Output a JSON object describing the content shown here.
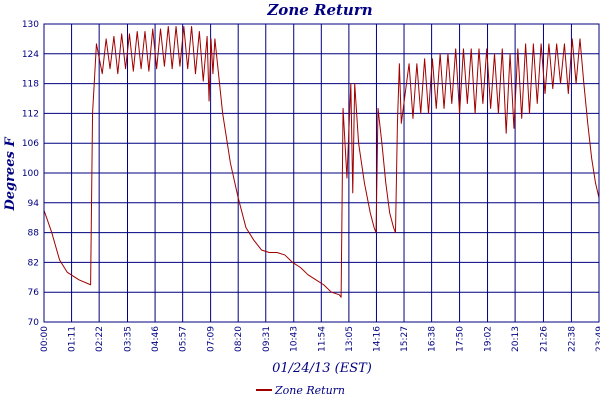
{
  "chart_data": {
    "type": "line",
    "title": "Zone Return",
    "xlabel": "01/24/13 (EST)",
    "ylabel": "Degrees F",
    "ylim": [
      70,
      130
    ],
    "y_ticks": [
      "70",
      "76",
      "82",
      "88",
      "94",
      "100",
      "106",
      "112",
      "118",
      "124",
      "130"
    ],
    "x_ticks": [
      "00:00",
      "01:11",
      "02:22",
      "03:35",
      "04:46",
      "05:57",
      "07:09",
      "08:20",
      "09:31",
      "10:43",
      "11:54",
      "13:05",
      "14:16",
      "15:27",
      "16:38",
      "17:50",
      "19:02",
      "20:13",
      "21:26",
      "22:38",
      "23:49"
    ],
    "grid": true,
    "legend_position": "bottom",
    "colors": {
      "series": "#a00000",
      "axis": "#000080",
      "grid": "#000080"
    },
    "series": [
      {
        "name": "Zone Return",
        "points": [
          [
            "00:00",
            92.5
          ],
          [
            "00:20",
            88
          ],
          [
            "00:40",
            82.5
          ],
          [
            "01:00",
            80
          ],
          [
            "01:30",
            78.5
          ],
          [
            "02:00",
            77.5
          ],
          [
            "02:05",
            112
          ],
          [
            "02:15",
            126
          ],
          [
            "02:30",
            120
          ],
          [
            "02:40",
            127
          ],
          [
            "02:50",
            121
          ],
          [
            "03:00",
            127.5
          ],
          [
            "03:10",
            120
          ],
          [
            "03:20",
            128
          ],
          [
            "03:30",
            121
          ],
          [
            "03:40",
            128
          ],
          [
            "03:50",
            120.5
          ],
          [
            "04:00",
            128.5
          ],
          [
            "04:10",
            121
          ],
          [
            "04:20",
            128.5
          ],
          [
            "04:30",
            120.5
          ],
          [
            "04:40",
            129
          ],
          [
            "04:50",
            121
          ],
          [
            "05:00",
            129
          ],
          [
            "05:10",
            121.5
          ],
          [
            "05:20",
            129.5
          ],
          [
            "05:30",
            121
          ],
          [
            "05:40",
            129.5
          ],
          [
            "05:50",
            121.5
          ],
          [
            "06:00",
            129.5
          ],
          [
            "06:10",
            121
          ],
          [
            "06:20",
            129.5
          ],
          [
            "06:30",
            120
          ],
          [
            "06:40",
            128.5
          ],
          [
            "06:50",
            118.5
          ],
          [
            "07:00",
            127.5
          ],
          [
            "07:05",
            114.5
          ],
          [
            "07:10",
            127
          ],
          [
            "07:15",
            120
          ],
          [
            "07:20",
            127
          ],
          [
            "07:40",
            112
          ],
          [
            "08:00",
            102
          ],
          [
            "08:20",
            95
          ],
          [
            "08:40",
            89
          ],
          [
            "09:00",
            86.5
          ],
          [
            "09:20",
            84.5
          ],
          [
            "09:40",
            84
          ],
          [
            "10:00",
            84
          ],
          [
            "10:20",
            83.5
          ],
          [
            "10:40",
            82
          ],
          [
            "11:00",
            81
          ],
          [
            "11:20",
            79.5
          ],
          [
            "11:40",
            78.5
          ],
          [
            "12:00",
            77.5
          ],
          [
            "12:20",
            76
          ],
          [
            "12:40",
            75.5
          ],
          [
            "12:45",
            75
          ],
          [
            "12:50",
            113
          ],
          [
            "13:00",
            99
          ],
          [
            "13:10",
            118
          ],
          [
            "13:15",
            96
          ],
          [
            "13:20",
            118
          ],
          [
            "13:30",
            106
          ],
          [
            "13:45",
            98
          ],
          [
            "14:00",
            92
          ],
          [
            "14:10",
            89
          ],
          [
            "14:15",
            88
          ],
          [
            "14:20",
            113
          ],
          [
            "14:30",
            106
          ],
          [
            "14:40",
            98
          ],
          [
            "14:50",
            92
          ],
          [
            "15:00",
            89
          ],
          [
            "15:05",
            88
          ],
          [
            "15:10",
            110
          ],
          [
            "15:15",
            122
          ],
          [
            "15:20",
            110
          ],
          [
            "15:40",
            122
          ],
          [
            "15:50",
            111
          ],
          [
            "16:00",
            122
          ],
          [
            "16:10",
            112
          ],
          [
            "16:20",
            123
          ],
          [
            "16:30",
            112
          ],
          [
            "16:40",
            123
          ],
          [
            "16:50",
            113
          ],
          [
            "17:00",
            124
          ],
          [
            "17:10",
            113
          ],
          [
            "17:20",
            124
          ],
          [
            "17:30",
            114
          ],
          [
            "17:40",
            125
          ],
          [
            "17:50",
            112
          ],
          [
            "18:00",
            125
          ],
          [
            "18:10",
            114
          ],
          [
            "18:20",
            125
          ],
          [
            "18:30",
            112
          ],
          [
            "18:40",
            125
          ],
          [
            "18:50",
            114
          ],
          [
            "19:00",
            125
          ],
          [
            "19:10",
            113
          ],
          [
            "19:20",
            124
          ],
          [
            "19:30",
            112
          ],
          [
            "19:40",
            125
          ],
          [
            "19:50",
            108
          ],
          [
            "20:00",
            124
          ],
          [
            "20:10",
            109
          ],
          [
            "20:20",
            125
          ],
          [
            "20:30",
            111
          ],
          [
            "20:40",
            126
          ],
          [
            "20:50",
            112
          ],
          [
            "21:00",
            126
          ],
          [
            "21:10",
            114
          ],
          [
            "21:20",
            126
          ],
          [
            "21:30",
            116
          ],
          [
            "21:40",
            126
          ],
          [
            "21:50",
            117
          ],
          [
            "22:00",
            126
          ],
          [
            "22:10",
            118
          ],
          [
            "22:20",
            126
          ],
          [
            "22:30",
            116
          ],
          [
            "22:40",
            127
          ],
          [
            "22:50",
            118
          ],
          [
            "23:00",
            127
          ],
          [
            "23:10",
            118
          ],
          [
            "23:20",
            110
          ],
          [
            "23:30",
            103
          ],
          [
            "23:40",
            98
          ],
          [
            "23:49",
            95
          ]
        ]
      }
    ]
  }
}
